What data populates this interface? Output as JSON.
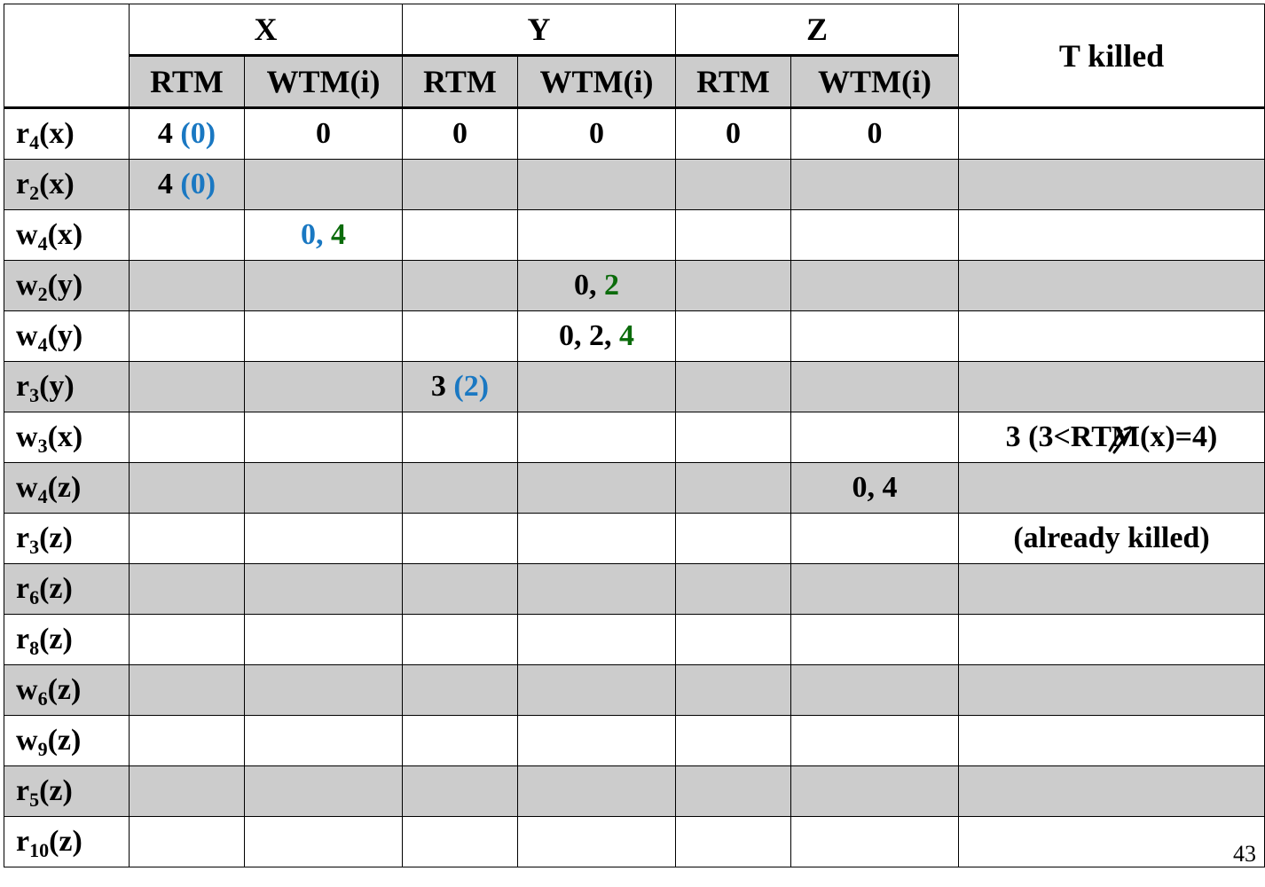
{
  "table": {
    "groups": [
      {
        "label": "X",
        "cols": [
          "RTM",
          "WTM(i)"
        ]
      },
      {
        "label": "Y",
        "cols": [
          "RTM",
          "WTM(i)"
        ]
      },
      {
        "label": "Z",
        "cols": [
          "RTM",
          "WTM(i)"
        ]
      }
    ],
    "killed_header": "T killed",
    "rows": [
      {
        "op": "r",
        "sub": "4",
        "obj": "(x)"
      },
      {
        "op": "r",
        "sub": "2",
        "obj": "(x)"
      },
      {
        "op": "w",
        "sub": "4",
        "obj": "(x)"
      },
      {
        "op": "w",
        "sub": "2",
        "obj": "(y)"
      },
      {
        "op": "w",
        "sub": "4",
        "obj": "(y)"
      },
      {
        "op": "r",
        "sub": "3",
        "obj": "(y)"
      },
      {
        "op": "w",
        "sub": "3",
        "obj": "(x)"
      },
      {
        "op": "w",
        "sub": "4",
        "obj": "(z)"
      },
      {
        "op": "r",
        "sub": "3",
        "obj": "(z)"
      },
      {
        "op": "r",
        "sub": "6",
        "obj": "(z)"
      },
      {
        "op": "r",
        "sub": "8",
        "obj": "(z)"
      },
      {
        "op": "w",
        "sub": "6",
        "obj": "(z)"
      },
      {
        "op": "w",
        "sub": "9",
        "obj": "(z)"
      },
      {
        "op": "r",
        "sub": "5",
        "obj": "(z)"
      },
      {
        "op": "r",
        "sub": "10",
        "obj": "(z)"
      }
    ],
    "cells": {
      "r0_x_rtm_a": "4 ",
      "r0_x_rtm_b": "(0)",
      "r0_x_wtm": "0",
      "r0_y_rtm": "0",
      "r0_y_wtm": "0",
      "r0_z_rtm": "0",
      "r0_z_wtm": "0",
      "r1_x_rtm_a": "4 ",
      "r1_x_rtm_b": "(0)",
      "r2_x_wtm_a": "0,",
      "r2_x_wtm_b": " 4",
      "r3_y_wtm_a": "0, ",
      "r3_y_wtm_b": "2",
      "r4_y_wtm_a": "0, 2, ",
      "r4_y_wtm_b": "4",
      "r5_y_rtm_a": "3 ",
      "r5_y_rtm_b": "(2)",
      "r6_killed_a": "3 (3<",
      "r6_killed_b": "RTM(x)=4)",
      "r7_z_wtm": "0, 4",
      "r8_killed": "(already killed)"
    },
    "colors": {
      "blue": "#1a78c2",
      "green": "#0b6b0b",
      "gray": "#8c8c8c",
      "red": "#e0140f",
      "shade": "#cccccc"
    }
  },
  "page_number": "43"
}
